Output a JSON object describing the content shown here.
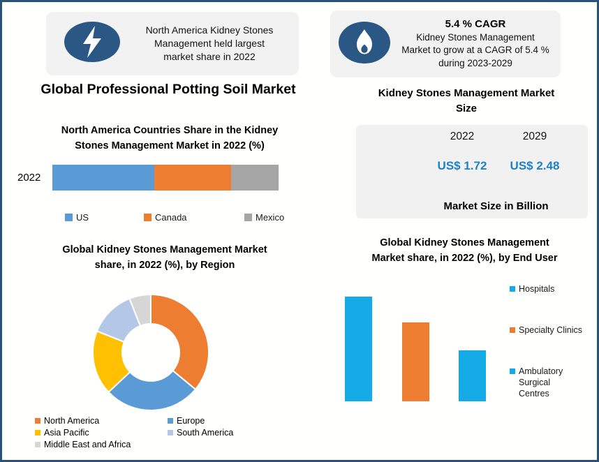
{
  "colors": {
    "frame_border": "#27537a",
    "icon_navy": "#2a5783",
    "badge_bg": "#f2f2f2",
    "panel_bg": "#f1f1f1",
    "value_blue": "#1e82c8"
  },
  "badges": {
    "left": {
      "icon": "lightning-icon",
      "lines": [
        "North America Kidney Stones",
        "Management held largest",
        "market share in 2022"
      ]
    },
    "right": {
      "icon": "flame-icon",
      "heading": "5.4 % CAGR",
      "lines": [
        "Kidney Stones Management",
        "Market to grow at a CAGR of 5.4 %",
        "during 2023-2029"
      ]
    }
  },
  "main_title": "Global Professional Potting Soil Market",
  "chart_data": [
    {
      "type": "bar",
      "variant": "stacked-horizontal",
      "title": "North America Countries Share in the Kidney Stones Management Market in 2022 (%)",
      "title_lines": [
        "North America Countries Share in the Kidney",
        "Stones Management  Market in 2022 (%)"
      ],
      "categories": [
        "2022"
      ],
      "series": [
        {
          "name": "US",
          "values": [
            45
          ]
        },
        {
          "name": "Canada",
          "values": [
            34
          ]
        },
        {
          "name": "Mexico",
          "values": [
            21
          ]
        }
      ],
      "colors": [
        "#5b9bd5",
        "#ed7d31",
        "#a5a5a5"
      ],
      "legend_position": "bottom",
      "xlim": [
        0,
        100
      ],
      "grid": false
    },
    {
      "type": "pie",
      "variant": "donut",
      "title": "Global Kidney Stones Management Market share, in 2022 (%), by Region",
      "title_lines": [
        "Global Kidney Stones Management Market",
        "share, in 2022 (%), by Region"
      ],
      "labels": [
        "North America",
        "Europe",
        "Asia Pacific",
        "South America",
        "Middle East and Africa"
      ],
      "values": [
        36,
        27,
        18,
        13,
        6
      ],
      "colors": [
        "#ed7d31",
        "#5b9bd5",
        "#ffc000",
        "#b4c7e7",
        "#d6d6d6"
      ],
      "legend_position": "bottom"
    },
    {
      "type": "bar",
      "title": "Global Kidney Stones Management Market share, in 2022 (%), by End User",
      "title_lines": [
        "Global Kidney Stones Management",
        "Market share, in 2022 (%), by End User"
      ],
      "categories": [
        "Hospitals",
        "Specialty Clinics",
        "Ambulatory Surgical Centres"
      ],
      "values": [
        45,
        34,
        22
      ],
      "colors": [
        "#14aae6",
        "#ed7d31",
        "#14aae6"
      ],
      "legend_position": "right",
      "grid": false
    },
    {
      "type": "table",
      "title": "Kidney Stones Management Market Size",
      "title_lines": [
        "Kidney Stones Management Market",
        "Size"
      ],
      "columns": [
        "2022",
        "2029"
      ],
      "values": [
        "US$ 1.72",
        "US$ 2.48"
      ],
      "footer": "Market Size in Billion"
    }
  ]
}
